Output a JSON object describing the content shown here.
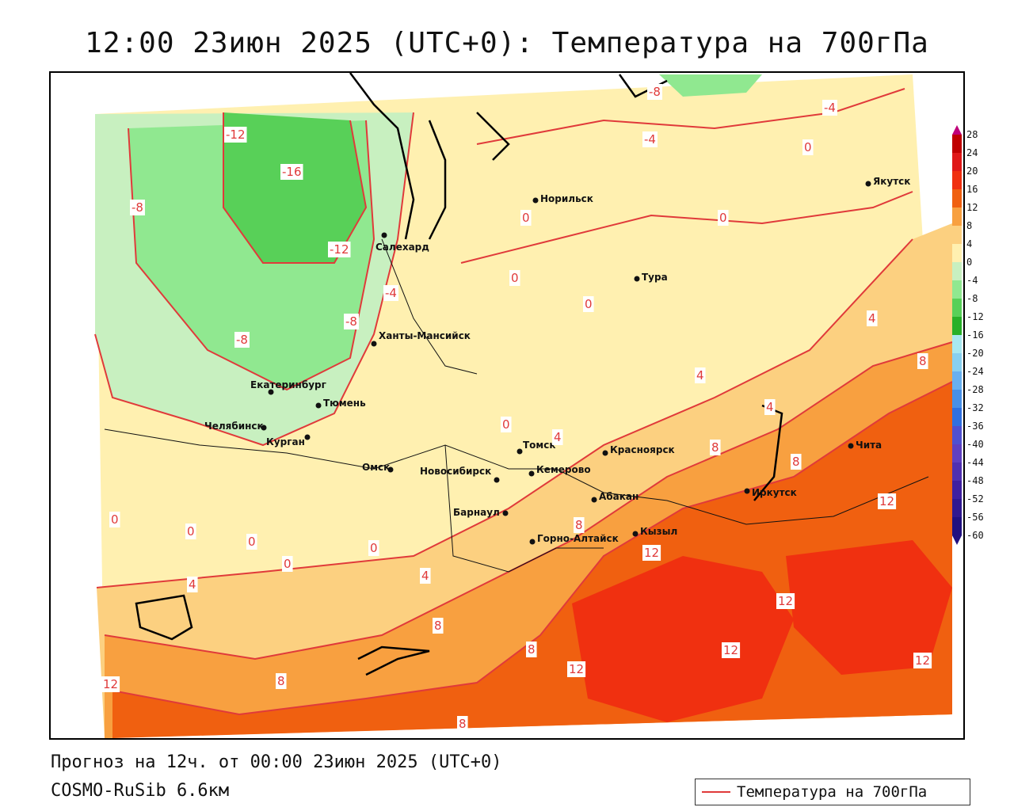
{
  "title": "12:00 23июн 2025 (UTC+0): Температура на 700гПа",
  "footer": {
    "forecast": "Прогноз на 12ч. от 00:00 23июн 2025 (UTC+0)",
    "model": "COSMO-RuSib 6.6км"
  },
  "legend": {
    "series_label": "Температура на 700гПа",
    "line_color": "#e03a3a"
  },
  "colorbar": {
    "ticks": [
      "28",
      "24",
      "20",
      "16",
      "12",
      "8",
      "4",
      "0",
      "-4",
      "-8",
      "-12",
      "-16",
      "-20",
      "-24",
      "-28",
      "-32",
      "-36",
      "-40",
      "-44",
      "-48",
      "-52",
      "-56",
      "-60"
    ],
    "colors": [
      "#c0007a",
      "#c00000",
      "#e01818",
      "#f03010",
      "#f06010",
      "#f8a040",
      "#fcd080",
      "#fff0b0",
      "#c8f0c0",
      "#90e890",
      "#58d058",
      "#28b028",
      "#a8e8f0",
      "#88d0f0",
      "#68b0f0",
      "#4890e8",
      "#3070e0",
      "#5050d0",
      "#6040c0",
      "#5030b0",
      "#4020a0",
      "#301890",
      "#201080"
    ]
  },
  "cities": [
    {
      "name": "Норильск"
    },
    {
      "name": "Якутск"
    },
    {
      "name": "Салехард"
    },
    {
      "name": "Тура"
    },
    {
      "name": "Ханты-Мансийск"
    },
    {
      "name": "Екатеринбург"
    },
    {
      "name": "Тюмень"
    },
    {
      "name": "Челябинск"
    },
    {
      "name": "Курган"
    },
    {
      "name": "Омск"
    },
    {
      "name": "Томск"
    },
    {
      "name": "Красноярск"
    },
    {
      "name": "Новосибирск"
    },
    {
      "name": "Кемерово"
    },
    {
      "name": "Абакан"
    },
    {
      "name": "Барнаул"
    },
    {
      "name": "Горно-Алтайск"
    },
    {
      "name": "Кызыл"
    },
    {
      "name": "Иркутск"
    },
    {
      "name": "Чита"
    }
  ],
  "isotherm_labels": [
    "-12",
    "-16",
    "-8",
    "-12",
    "-8",
    "-8",
    "-4",
    "-8",
    "-4",
    "-4",
    "0",
    "0",
    "0",
    "0",
    "0",
    "0",
    "0",
    "0",
    "0",
    "0",
    "0",
    "4",
    "4",
    "4",
    "4",
    "4",
    "4",
    "8",
    "8",
    "8",
    "8",
    "8",
    "8",
    "8",
    "8",
    "12",
    "12",
    "12",
    "12",
    "12",
    "12",
    "12"
  ]
}
